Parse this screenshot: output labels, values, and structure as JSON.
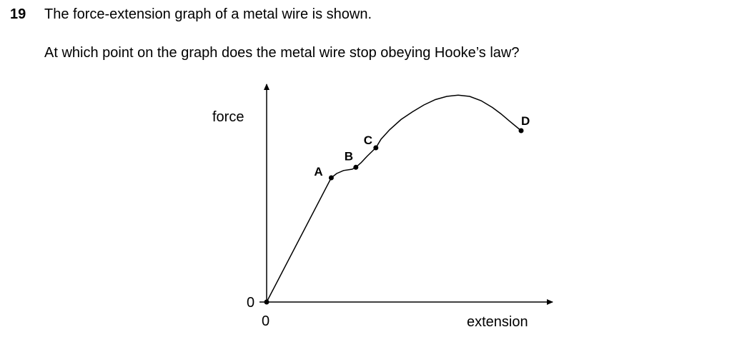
{
  "question": {
    "number": "19",
    "stem": "The force-extension graph of a metal wire is shown.",
    "prompt": "At which point on the graph does the metal wire stop obeying Hooke’s law?"
  },
  "chart_data": {
    "type": "line",
    "title": "",
    "xlabel": "extension",
    "ylabel": "force",
    "x_origin_label": "0",
    "y_origin_label": "0",
    "grid": false,
    "legend": "none",
    "xlim": [
      0,
      100
    ],
    "ylim": [
      0,
      100
    ],
    "series": [
      {
        "values": [
          [
            0,
            0
          ],
          [
            22.6,
            58.0
          ],
          [
            24.5,
            60.0
          ],
          [
            26.9,
            61.4
          ],
          [
            29.9,
            62.0
          ],
          [
            31.2,
            62.9
          ],
          [
            33.0,
            65.0
          ],
          [
            35.1,
            68.0
          ],
          [
            37.4,
            71.0
          ],
          [
            38.2,
            72.0
          ],
          [
            40,
            76.0
          ],
          [
            43,
            80.4
          ],
          [
            47,
            85.2
          ],
          [
            51,
            88.8
          ],
          [
            55,
            92.0
          ],
          [
            59,
            94.5
          ],
          [
            63,
            96.0
          ],
          [
            67,
            96.6
          ],
          [
            71,
            96.0
          ],
          [
            75,
            94.0
          ],
          [
            79,
            90.8
          ],
          [
            82,
            87.8
          ],
          [
            85,
            84.4
          ],
          [
            89,
            80.0
          ]
        ]
      }
    ],
    "points": [
      {
        "label": "A",
        "x": 22.6,
        "y": 58.0
      },
      {
        "label": "B",
        "x": 31.2,
        "y": 62.9
      },
      {
        "label": "C",
        "x": 38.2,
        "y": 72.0
      },
      {
        "label": "D",
        "x": 89,
        "y": 80.0
      }
    ]
  }
}
